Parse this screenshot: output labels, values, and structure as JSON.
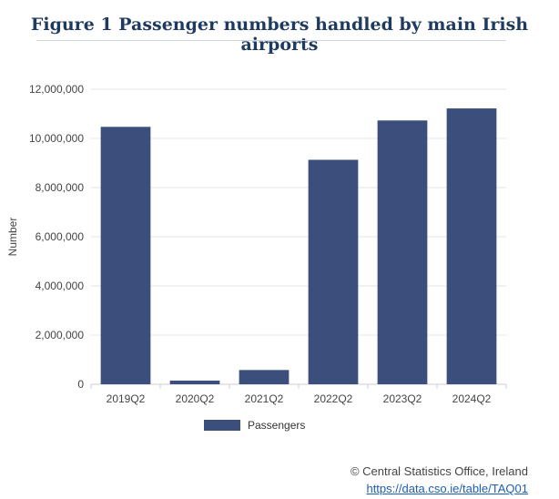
{
  "figure": {
    "title": "Figure 1 Passenger numbers handled by main Irish airports"
  },
  "colors": {
    "bar": "#3c4e7c",
    "grid": "#e6e6e6",
    "axis": "#cccccc",
    "text": "#444444"
  },
  "chart_data": {
    "type": "bar",
    "title": "",
    "xlabel": "",
    "ylabel": "Number",
    "ylim": [
      0,
      12000000
    ],
    "ytick_values": [
      0,
      2000000,
      4000000,
      6000000,
      8000000,
      10000000,
      12000000
    ],
    "ytick_labels": [
      "0",
      "2,000,000",
      "4,000,000",
      "6,000,000",
      "8,000,000",
      "10,000,000",
      "12,000,000"
    ],
    "grid": true,
    "legend_position": "bottom-center",
    "categories": [
      "2019Q2",
      "2020Q2",
      "2021Q2",
      "2022Q2",
      "2023Q2",
      "2024Q2"
    ],
    "series": [
      {
        "name": "Passengers",
        "values": [
          10470000,
          150000,
          580000,
          9130000,
          10730000,
          11220000
        ]
      }
    ]
  },
  "source": {
    "copyright": "© Central Statistics Office, Ireland",
    "link": "https://data.cso.ie/table/TAQ01"
  }
}
